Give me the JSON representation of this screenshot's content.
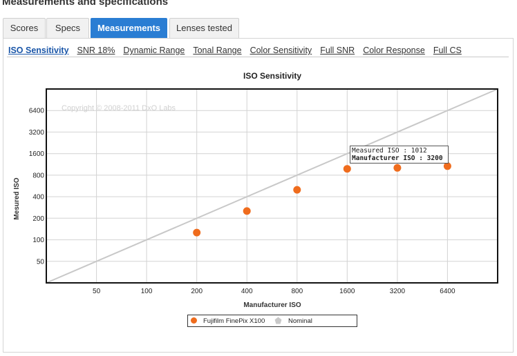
{
  "page": {
    "title": "Measurements and specifications"
  },
  "tabs": [
    {
      "label": "Scores",
      "active": false
    },
    {
      "label": "Specs",
      "active": false
    },
    {
      "label": "Measurements",
      "active": true
    },
    {
      "label": "Lenses tested",
      "active": false
    }
  ],
  "subnav": [
    {
      "label": "ISO Sensitivity",
      "active": true
    },
    {
      "label": "SNR 18%",
      "active": false
    },
    {
      "label": "Dynamic Range",
      "active": false
    },
    {
      "label": "Tonal Range",
      "active": false
    },
    {
      "label": "Color Sensitivity",
      "active": false
    },
    {
      "label": "Full SNR",
      "active": false
    },
    {
      "label": "Color Response",
      "active": false
    },
    {
      "label": "Full CS",
      "active": false
    }
  ],
  "colors": {
    "accent": "#2a7dd3",
    "series": "#ef6c1d",
    "nominal": "#c8c8c8"
  },
  "tooltip": {
    "line1": "Measured ISO : 1012",
    "line2": "Manufacturer ISO : 3200"
  },
  "chart_data": {
    "type": "scatter",
    "title": "ISO Sensitivity",
    "xlabel": "Manufacturer ISO",
    "ylabel": "Mesured ISO",
    "watermark": "Copyright © 2008-2011 DxO Labs",
    "x_scale": "log2",
    "y_scale": "log2",
    "x_ticks": [
      50,
      100,
      200,
      400,
      800,
      1600,
      3200,
      6400
    ],
    "y_ticks": [
      50,
      100,
      200,
      400,
      800,
      1600,
      3200,
      6400
    ],
    "xlim": [
      25,
      12800
    ],
    "ylim": [
      25,
      12800
    ],
    "grid": true,
    "legend_position": "bottom",
    "series": [
      {
        "name": "Fujifilm FinePix X100",
        "marker": "circle",
        "points": [
          {
            "x": 200,
            "y": 126
          },
          {
            "x": 400,
            "y": 252
          },
          {
            "x": 800,
            "y": 500
          },
          {
            "x": 1600,
            "y": 980
          },
          {
            "x": 3200,
            "y": 1012
          },
          {
            "x": 6400,
            "y": 1070
          }
        ]
      },
      {
        "name": "Nominal",
        "marker": "pentagon",
        "line": true,
        "points": [
          {
            "x": 25,
            "y": 25
          },
          {
            "x": 12800,
            "y": 12800
          }
        ]
      }
    ]
  }
}
